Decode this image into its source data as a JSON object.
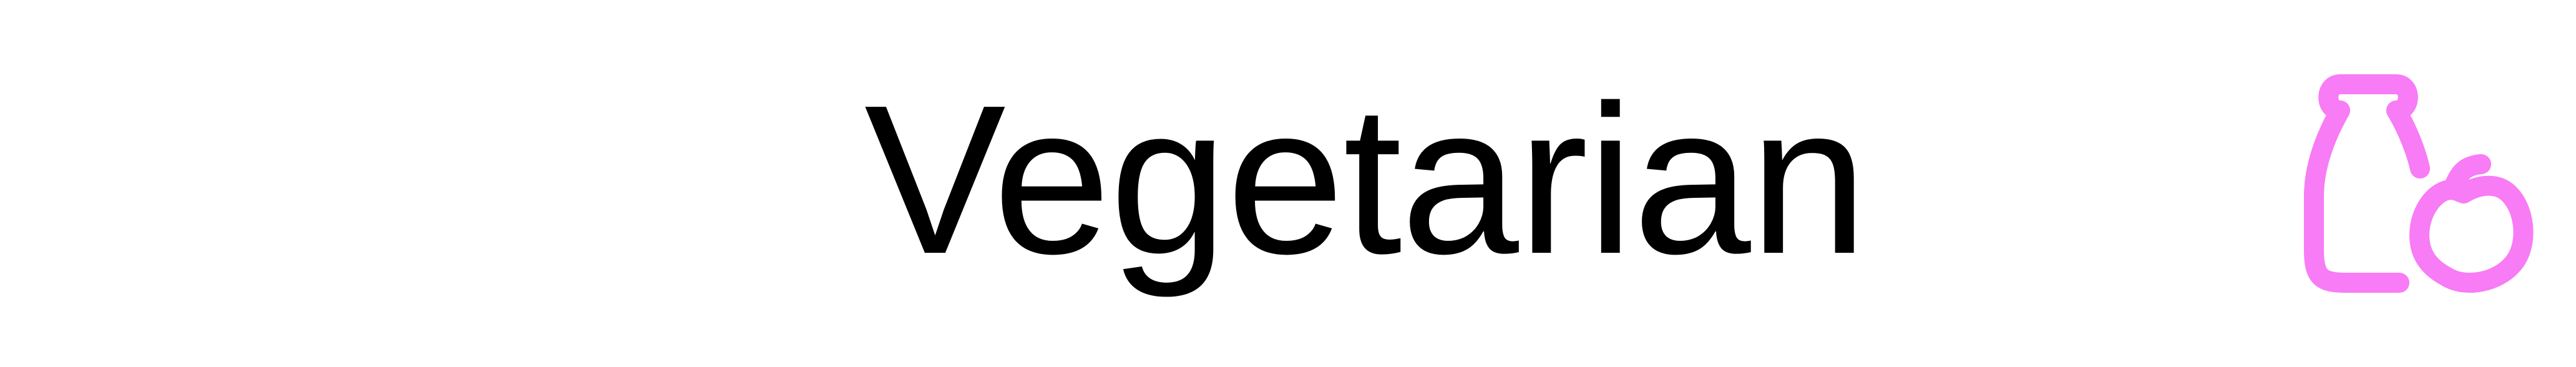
{
  "option": {
    "label": "Vegetarian",
    "icon": "milk-bottle-apple-icon",
    "icon_color": "#F77CF5",
    "text_color": "#000000",
    "background": "#FFFFFF"
  }
}
